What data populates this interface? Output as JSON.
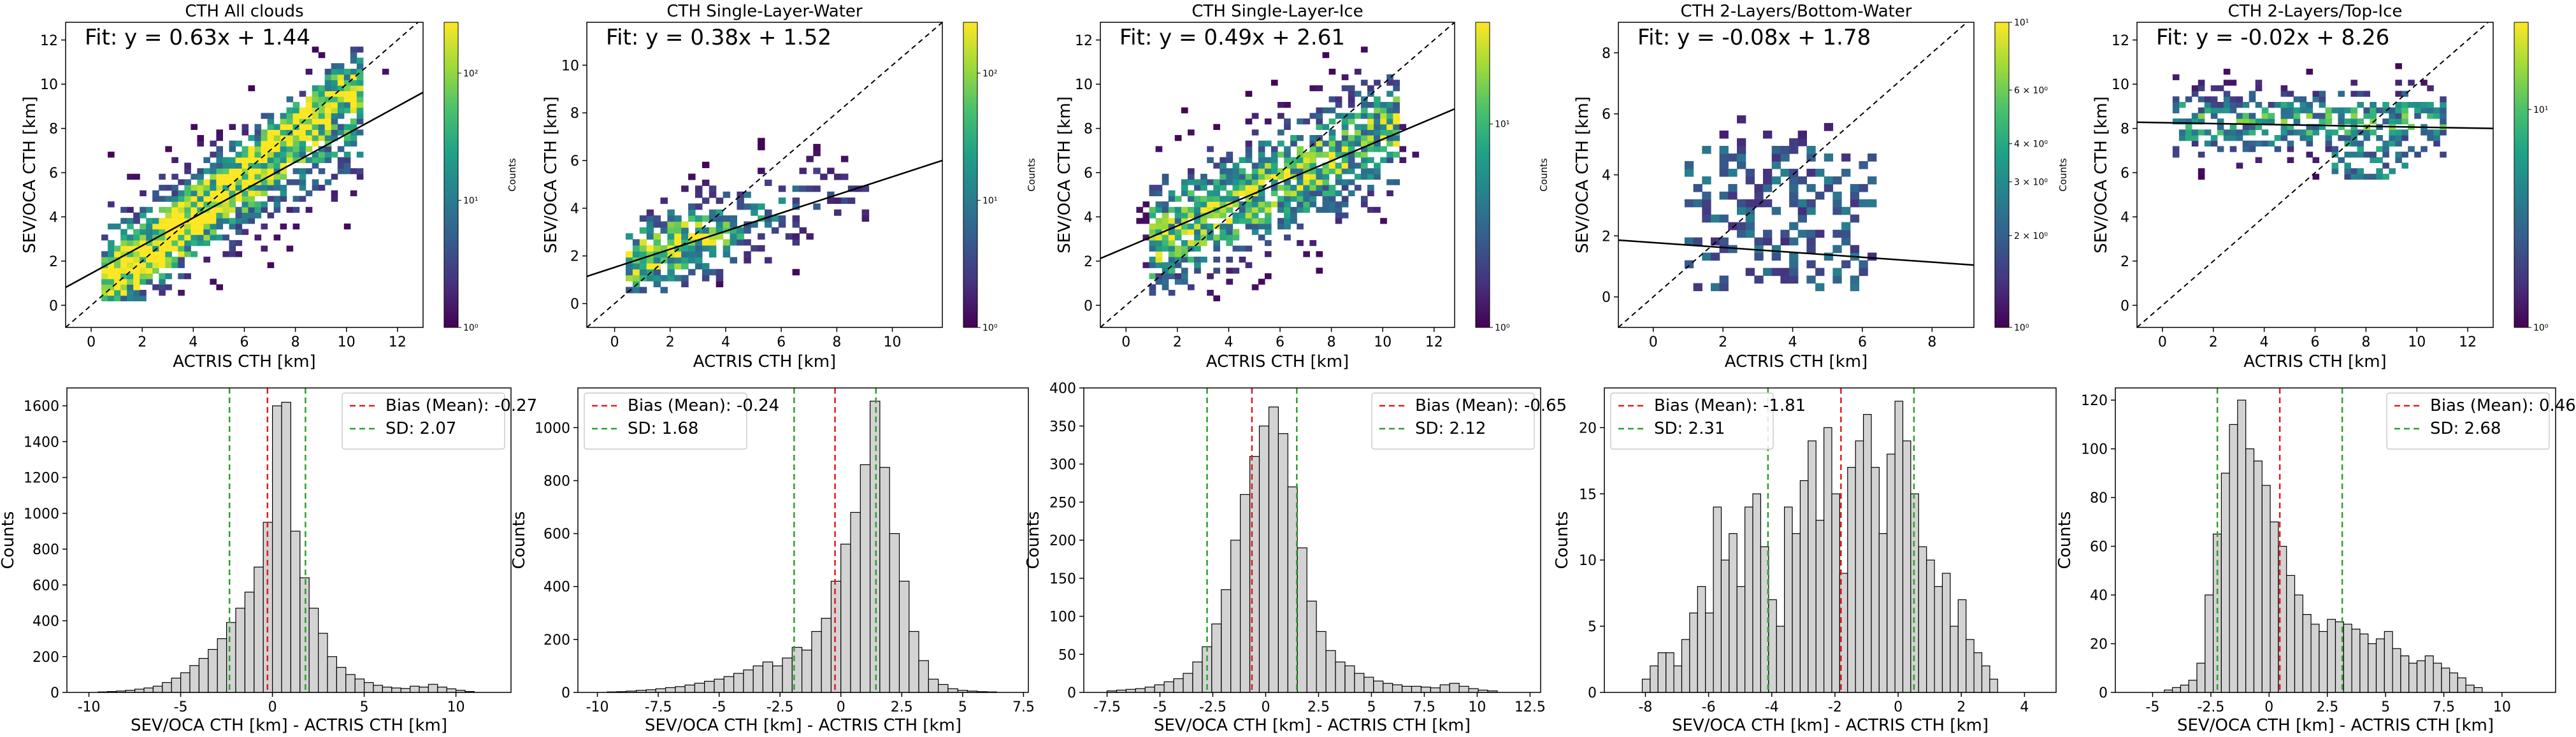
{
  "colors": {
    "viridis": [
      "#440154",
      "#46327e",
      "#365c8d",
      "#277f8e",
      "#1fa187",
      "#4ac16d",
      "#a0da39",
      "#fde725"
    ],
    "hist_fill": "#d3d3d3",
    "bias_line": "#e41a1c",
    "sd_line": "#2ca02c",
    "fit_line": "#000000"
  },
  "heatmaps": [
    {
      "title": "CTH All clouds",
      "fit_label": "Fit: y = 0.63x + 1.44",
      "xlabel": "ACTRIS CTH [km]",
      "ylabel": "SEV/OCA CTH [km]",
      "xlim": [
        -1,
        13
      ],
      "ylim": [
        -1,
        12.8
      ],
      "xticks": [
        "0",
        "2",
        "4",
        "6",
        "8",
        "10",
        "12"
      ],
      "yticks": [
        "0",
        "2",
        "4",
        "6",
        "8",
        "10",
        "12"
      ],
      "fit": {
        "slope": 0.63,
        "intercept": 1.44
      },
      "colorbar": {
        "label": "Counts",
        "ticks": [
          "10⁰",
          "10¹",
          "10²"
        ],
        "log_min": 0,
        "log_max": 2.4
      }
    },
    {
      "title": "CTH Single-Layer-Water",
      "fit_label": "Fit: y = 0.38x + 1.52",
      "xlabel": "ACTRIS CTH [km]",
      "ylabel": "SEV/OCA CTH [km]",
      "xlim": [
        -1,
        11.8
      ],
      "ylim": [
        -1,
        11.8
      ],
      "xticks": [
        "0",
        "2",
        "4",
        "6",
        "8",
        "10"
      ],
      "yticks": [
        "0",
        "2",
        "4",
        "6",
        "8",
        "10"
      ],
      "fit": {
        "slope": 0.38,
        "intercept": 1.52
      },
      "colorbar": {
        "label": "Counts",
        "ticks": [
          "10⁰",
          "10¹",
          "10²"
        ],
        "log_min": 0,
        "log_max": 2.4
      }
    },
    {
      "title": "CTH Single-Layer-Ice",
      "fit_label": "Fit: y = 0.49x + 2.61",
      "xlabel": "ACTRIS CTH [km]",
      "ylabel": "SEV/OCA CTH [km]",
      "xlim": [
        -1,
        12.8
      ],
      "ylim": [
        -1,
        12.8
      ],
      "xticks": [
        "0",
        "2",
        "4",
        "6",
        "8",
        "10",
        "12"
      ],
      "yticks": [
        "0",
        "2",
        "4",
        "6",
        "8",
        "10",
        "12"
      ],
      "fit": {
        "slope": 0.49,
        "intercept": 2.61
      },
      "colorbar": {
        "label": "Counts",
        "ticks": [
          "10⁰",
          "10¹"
        ],
        "log_min": 0,
        "log_max": 1.5
      }
    },
    {
      "title": "CTH 2-Layers/Bottom-Water",
      "fit_label": "Fit: y = -0.08x + 1.78",
      "xlabel": "ACTRIS CTH [km]",
      "ylabel": "SEV/OCA CTH [km]",
      "xlim": [
        -1,
        9.2
      ],
      "ylim": [
        -1,
        9
      ],
      "xticks": [
        "0",
        "2",
        "4",
        "6",
        "8"
      ],
      "yticks": [
        "0",
        "2",
        "4",
        "6",
        "8"
      ],
      "fit": {
        "slope": -0.08,
        "intercept": 1.78
      },
      "colorbar": {
        "label": "Counts",
        "ticks": [
          "10⁰",
          "2 × 10⁰",
          "3 × 10⁰",
          "4 × 10⁰",
          "6 × 10⁰",
          "10¹"
        ],
        "log_min": 0,
        "log_max": 1
      }
    },
    {
      "title": "CTH 2-Layers/Top-Ice",
      "fit_label": "Fit: y = -0.02x + 8.26",
      "xlabel": "ACTRIS CTH [km]",
      "ylabel": "SEV/OCA CTH [km]",
      "xlim": [
        -1,
        13
      ],
      "ylim": [
        -1,
        12.8
      ],
      "xticks": [
        "0",
        "2",
        "4",
        "6",
        "8",
        "10",
        "12"
      ],
      "yticks": [
        "0",
        "2",
        "4",
        "6",
        "8",
        "10",
        "12"
      ],
      "fit": {
        "slope": -0.02,
        "intercept": 8.26
      },
      "colorbar": {
        "label": "Counts",
        "ticks": [
          "10⁰",
          "10¹"
        ],
        "log_min": 0,
        "log_max": 1.4
      }
    }
  ],
  "chart_data": [
    {
      "type": "bar",
      "xlabel": "SEV/OCA CTH [km] - ACTRIS CTH [km]",
      "ylabel": "Counts",
      "xlim": [
        -11.2,
        13
      ],
      "ylim": [
        0,
        1700
      ],
      "xticks": [
        -10,
        -5,
        0,
        5,
        10
      ],
      "yticks": [
        0,
        200,
        400,
        600,
        800,
        1000,
        1200,
        1400,
        1600
      ],
      "bin_start": -9.5,
      "bin_width": 0.5,
      "counts": [
        3,
        5,
        8,
        12,
        18,
        25,
        35,
        55,
        80,
        110,
        150,
        190,
        240,
        300,
        390,
        470,
        560,
        700,
        950,
        1600,
        1620,
        900,
        640,
        470,
        330,
        200,
        140,
        100,
        75,
        55,
        40,
        30,
        25,
        22,
        35,
        30,
        45,
        30,
        20,
        12,
        5
      ],
      "bias": -0.27,
      "sd": 2.07,
      "legend": {
        "position": "upper right",
        "entries": [
          "Bias (Mean): -0.27",
          "SD: 2.07"
        ]
      }
    },
    {
      "type": "bar",
      "xlabel": "SEV/OCA CTH [km] - ACTRIS CTH [km]",
      "ylabel": "Counts",
      "xlim": [
        -10.8,
        7.7
      ],
      "ylim": [
        0,
        1150
      ],
      "xticks": [
        -10,
        -7.5,
        -5,
        -2.5,
        0,
        2.5,
        5,
        7.5
      ],
      "yticks": [
        0,
        200,
        400,
        600,
        800,
        1000
      ],
      "bin_start": -9.6,
      "bin_width": 0.4,
      "counts": [
        2,
        3,
        5,
        8,
        10,
        14,
        18,
        22,
        28,
        35,
        42,
        50,
        60,
        72,
        85,
        100,
        115,
        100,
        130,
        170,
        160,
        230,
        280,
        420,
        560,
        680,
        860,
        1100,
        850,
        600,
        420,
        230,
        120,
        50,
        30,
        14,
        8,
        5,
        3,
        2
      ],
      "bias": -0.24,
      "sd": 1.68,
      "legend": {
        "position": "upper left",
        "entries": [
          "Bias (Mean): -0.24",
          "SD: 1.68"
        ]
      }
    },
    {
      "type": "bar",
      "xlabel": "SEV/OCA CTH [km] - ACTRIS CTH [km]",
      "ylabel": "Counts",
      "xlim": [
        -8.6,
        13
      ],
      "ylim": [
        0,
        400
      ],
      "xticks": [
        -7.5,
        -5,
        -2.5,
        0,
        2.5,
        5,
        7.5,
        10,
        12.5
      ],
      "yticks": [
        0,
        50,
        100,
        150,
        200,
        250,
        300,
        350,
        400
      ],
      "bin_start": -7.5,
      "bin_width": 0.45,
      "counts": [
        2,
        3,
        4,
        5,
        7,
        10,
        14,
        18,
        25,
        40,
        60,
        90,
        135,
        200,
        260,
        310,
        350,
        375,
        340,
        270,
        190,
        120,
        80,
        55,
        40,
        35,
        25,
        20,
        15,
        12,
        10,
        8,
        8,
        7,
        6,
        10,
        12,
        8,
        5,
        3,
        2
      ],
      "bias": -0.65,
      "sd": 2.12,
      "legend": {
        "position": "upper right",
        "entries": [
          "Bias (Mean): -0.65",
          "SD: 2.12"
        ]
      }
    },
    {
      "type": "bar",
      "xlabel": "SEV/OCA CTH [km] - ACTRIS CTH [km]",
      "ylabel": "Counts",
      "xlim": [
        -9.3,
        5
      ],
      "ylim": [
        0,
        23
      ],
      "xticks": [
        -8,
        -6,
        -4,
        -2,
        0,
        2,
        4
      ],
      "yticks": [
        0,
        5,
        10,
        15,
        20
      ],
      "bin_start": -8.1,
      "bin_width": 0.25,
      "counts": [
        1,
        2,
        3,
        3,
        2,
        4,
        6,
        8,
        6,
        14,
        10,
        12,
        8,
        14,
        15,
        11,
        7,
        5,
        14,
        12,
        16,
        19,
        13,
        20,
        15,
        9,
        17,
        19,
        21,
        17,
        12,
        18,
        22,
        19,
        15,
        11,
        10,
        8,
        9,
        5,
        7,
        4,
        3,
        2,
        1
      ],
      "bias": -1.81,
      "sd": 2.31,
      "legend": {
        "position": "upper left",
        "entries": [
          "Bias (Mean): -1.81",
          "SD: 2.31"
        ]
      }
    },
    {
      "type": "bar",
      "xlabel": "SEV/OCA CTH [km] - ACTRIS CTH [km]",
      "ylabel": "Counts",
      "xlim": [
        -6.6,
        12.3
      ],
      "ylim": [
        0,
        125
      ],
      "xticks": [
        -5,
        -2.5,
        0,
        2.5,
        5,
        7.5,
        10
      ],
      "yticks": [
        0,
        20,
        40,
        60,
        80,
        100,
        120
      ],
      "bin_start": -4.5,
      "bin_width": 0.35,
      "counts": [
        1,
        2,
        3,
        5,
        12,
        40,
        65,
        90,
        110,
        120,
        100,
        95,
        85,
        70,
        60,
        48,
        40,
        32,
        28,
        25,
        30,
        29,
        28,
        26,
        24,
        20,
        22,
        25,
        18,
        15,
        12,
        13,
        15,
        12,
        10,
        8,
        6,
        3,
        2
      ],
      "bias": 0.46,
      "sd": 2.68,
      "legend": {
        "position": "upper right",
        "entries": [
          "Bias (Mean): 0.46",
          "SD: 2.68"
        ]
      }
    }
  ]
}
